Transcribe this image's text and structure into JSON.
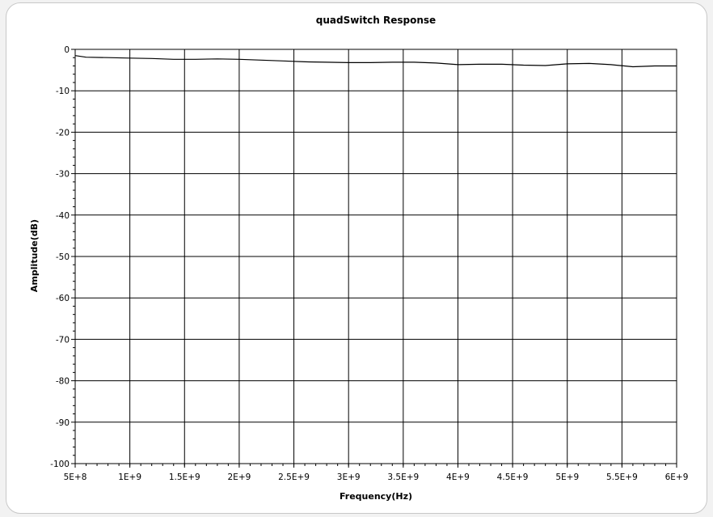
{
  "chart_data": {
    "type": "line",
    "title": "quadSwitch Response",
    "xlabel": "Frequency(Hz)",
    "ylabel": "Amplitude(dB)",
    "xlim": [
      500000000,
      6000000000
    ],
    "ylim": [
      -100,
      0
    ],
    "xticks": [
      {
        "value": 500000000,
        "label": "5E+8"
      },
      {
        "value": 1000000000,
        "label": "1E+9"
      },
      {
        "value": 1500000000,
        "label": "1.5E+9"
      },
      {
        "value": 2000000000,
        "label": "2E+9"
      },
      {
        "value": 2500000000,
        "label": "2.5E+9"
      },
      {
        "value": 3000000000,
        "label": "3E+9"
      },
      {
        "value": 3500000000,
        "label": "3.5E+9"
      },
      {
        "value": 4000000000,
        "label": "4E+9"
      },
      {
        "value": 4500000000,
        "label": "4.5E+9"
      },
      {
        "value": 5000000000,
        "label": "5E+9"
      },
      {
        "value": 5500000000,
        "label": "5.5E+9"
      },
      {
        "value": 6000000000,
        "label": "6E+9"
      }
    ],
    "yticks": [
      {
        "value": 0,
        "label": "0"
      },
      {
        "value": -10,
        "label": "-10"
      },
      {
        "value": -20,
        "label": "-20"
      },
      {
        "value": -30,
        "label": "-30"
      },
      {
        "value": -40,
        "label": "-40"
      },
      {
        "value": -50,
        "label": "-50"
      },
      {
        "value": -60,
        "label": "-60"
      },
      {
        "value": -70,
        "label": "-70"
      },
      {
        "value": -80,
        "label": "-80"
      },
      {
        "value": -90,
        "label": "-90"
      },
      {
        "value": -100,
        "label": "-100"
      }
    ],
    "grid": true,
    "series": [
      {
        "color": "#000000",
        "x": [
          500000000,
          600000000,
          800000000,
          1000000000,
          1200000000,
          1400000000,
          1600000000,
          1800000000,
          2000000000,
          2200000000,
          2400000000,
          2600000000,
          2800000000,
          3000000000,
          3200000000,
          3400000000,
          3600000000,
          3800000000,
          4000000000,
          4200000000,
          4400000000,
          4600000000,
          4800000000,
          5000000000,
          5200000000,
          5400000000,
          5600000000,
          5800000000,
          6000000000
        ],
        "y": [
          -1.5,
          -1.9,
          -2.0,
          -2.1,
          -2.2,
          -2.4,
          -2.4,
          -2.3,
          -2.4,
          -2.6,
          -2.8,
          -3.0,
          -3.1,
          -3.2,
          -3.2,
          -3.1,
          -3.1,
          -3.3,
          -3.7,
          -3.6,
          -3.6,
          -3.8,
          -3.9,
          -3.5,
          -3.4,
          -3.7,
          -4.2,
          -4.0,
          -4.0
        ]
      }
    ]
  }
}
